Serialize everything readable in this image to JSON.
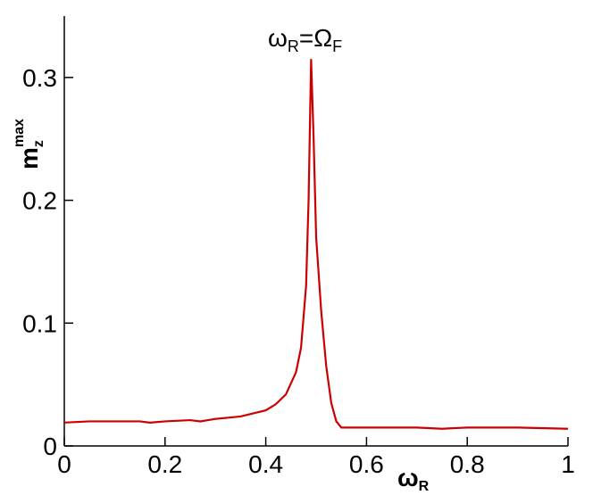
{
  "chart_data": {
    "type": "line",
    "annotation": {
      "base": "ω",
      "sub": "R",
      "mid": "=Ω",
      "sub2": "F"
    },
    "xlabel": {
      "base": "ω",
      "sub": "R"
    },
    "ylabel": {
      "base": "m",
      "sub": "z",
      "sup": "max"
    },
    "x": [
      0,
      0.05,
      0.1,
      0.15,
      0.17,
      0.2,
      0.25,
      0.27,
      0.3,
      0.35,
      0.38,
      0.4,
      0.42,
      0.44,
      0.46,
      0.47,
      0.48,
      0.485,
      0.49,
      0.495,
      0.5,
      0.51,
      0.52,
      0.53,
      0.54,
      0.55,
      0.6,
      0.7,
      0.75,
      0.8,
      0.9,
      1.0
    ],
    "series": [
      {
        "name": "m_z max",
        "color": "#cc0000",
        "values": [
          0.019,
          0.02,
          0.02,
          0.02,
          0.019,
          0.02,
          0.021,
          0.02,
          0.022,
          0.024,
          0.027,
          0.029,
          0.034,
          0.042,
          0.06,
          0.08,
          0.13,
          0.2,
          0.315,
          0.25,
          0.17,
          0.11,
          0.065,
          0.035,
          0.02,
          0.015,
          0.015,
          0.015,
          0.014,
          0.015,
          0.015,
          0.014
        ]
      }
    ],
    "xlim": [
      0,
      1
    ],
    "xticks": [
      0,
      0.2,
      0.4,
      0.6,
      0.8,
      1
    ],
    "ylim": [
      0,
      0.35
    ],
    "yticks": [
      0,
      0.1,
      0.2,
      0.3
    ]
  }
}
